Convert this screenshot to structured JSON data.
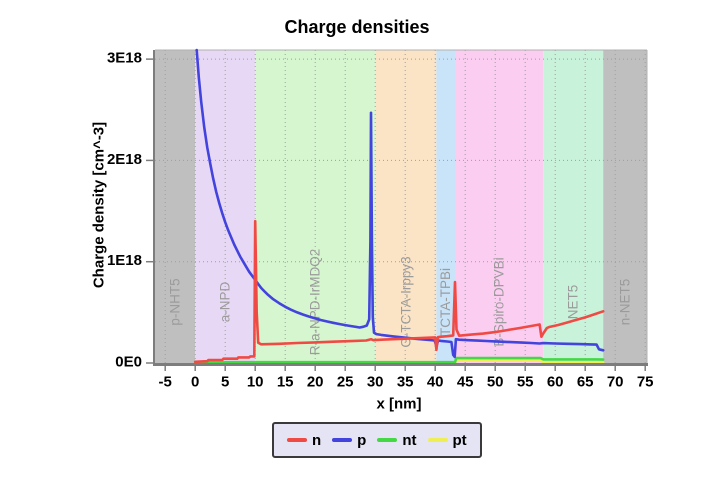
{
  "title": "Charge densities",
  "legend": {
    "items": [
      {
        "label": "n",
        "color": "#f04a45"
      },
      {
        "label": "p",
        "color": "#4343de"
      },
      {
        "label": "nt",
        "color": "#44d944"
      },
      {
        "label": "pt",
        "color": "#f0ee55"
      }
    ]
  },
  "chart_data": {
    "type": "line",
    "title": "Charge densities",
    "xlabel": "x [nm]",
    "ylabel": "Charge density [cm^-3]",
    "y_unit": "1e18 cm^-3",
    "xlim": [
      -6.7,
      75.3
    ],
    "ylim": [
      0,
      3.09
    ],
    "grid": true,
    "legend_position": "bottom",
    "x_ticks": [
      -5,
      0,
      5,
      10,
      15,
      20,
      25,
      30,
      35,
      40,
      45,
      50,
      55,
      60,
      65,
      70,
      75
    ],
    "y_ticks": [
      {
        "value": 0,
        "label": "0E0"
      },
      {
        "value": 1,
        "label": "1E18"
      },
      {
        "value": 2,
        "label": "2E18"
      },
      {
        "value": 3,
        "label": "3E18"
      }
    ],
    "regions": [
      {
        "x0": -6.7,
        "x1": 0,
        "color": "#bfbfbf",
        "label": "p-NHT5"
      },
      {
        "x0": 0,
        "x1": 10,
        "color": "#e7d9f5",
        "label": "a-NPD"
      },
      {
        "x0": 10,
        "x1": 30,
        "color": "#d5f6ce",
        "label": "R-a-NPD-IrMDQ2"
      },
      {
        "x0": 30,
        "x1": 40.2,
        "color": "#fbe4c6",
        "label": "G-TCTA-Irppy3"
      },
      {
        "x0": 40.2,
        "x1": 43.3,
        "color": "#c9e3f8",
        "label": "TCTA-TPBi"
      },
      {
        "x0": 43.3,
        "x1": 58,
        "color": "#fbcdf1",
        "label": "B-Spiro-DPVBi"
      },
      {
        "x0": 58,
        "x1": 68,
        "color": "#c9f2da",
        "label": "NET5"
      },
      {
        "x0": 68,
        "x1": 75.3,
        "color": "#bfbfbf",
        "label": "n-NET5"
      }
    ],
    "series": [
      {
        "name": "n",
        "color": "#f04a45",
        "points": [
          [
            0,
            0.012
          ],
          [
            2,
            0.018
          ],
          [
            2.2,
            0.03
          ],
          [
            4.5,
            0.03
          ],
          [
            4.7,
            0.042
          ],
          [
            7,
            0.042
          ],
          [
            7.2,
            0.055
          ],
          [
            9,
            0.055
          ],
          [
            9.2,
            0.065
          ],
          [
            9.85,
            0.065
          ],
          [
            10,
            1.4
          ],
          [
            10.25,
            0.5
          ],
          [
            10.5,
            0.2
          ],
          [
            11,
            0.185
          ],
          [
            14,
            0.19
          ],
          [
            17,
            0.197
          ],
          [
            20,
            0.203
          ],
          [
            23,
            0.21
          ],
          [
            26,
            0.216
          ],
          [
            28.5,
            0.222
          ],
          [
            29.3,
            0.235
          ],
          [
            29.7,
            0.225
          ],
          [
            30.2,
            0.228
          ],
          [
            32,
            0.233
          ],
          [
            34,
            0.238
          ],
          [
            36,
            0.243
          ],
          [
            38,
            0.248
          ],
          [
            40,
            0.253
          ],
          [
            40.2,
            0.13
          ],
          [
            40.45,
            0.255
          ],
          [
            41,
            0.26
          ],
          [
            42,
            0.265
          ],
          [
            43,
            0.272
          ],
          [
            43.3,
            0.8
          ],
          [
            43.55,
            0.33
          ],
          [
            44,
            0.27
          ],
          [
            46,
            0.28
          ],
          [
            48,
            0.29
          ],
          [
            50,
            0.305
          ],
          [
            52,
            0.325
          ],
          [
            54,
            0.345
          ],
          [
            56,
            0.365
          ],
          [
            57.4,
            0.38
          ],
          [
            57.7,
            0.26
          ],
          [
            58.1,
            0.3
          ],
          [
            58.6,
            0.345
          ],
          [
            59,
            0.355
          ],
          [
            60.5,
            0.375
          ],
          [
            62,
            0.4
          ],
          [
            63.5,
            0.425
          ],
          [
            65,
            0.45
          ],
          [
            66.5,
            0.48
          ],
          [
            68,
            0.51
          ]
        ]
      },
      {
        "name": "p",
        "color": "#4343de",
        "points": [
          [
            0.25,
            3.09
          ],
          [
            0.6,
            2.82
          ],
          [
            1,
            2.58
          ],
          [
            1.5,
            2.33
          ],
          [
            2,
            2.13
          ],
          [
            2.5,
            1.97
          ],
          [
            3,
            1.82
          ],
          [
            3.5,
            1.69
          ],
          [
            4,
            1.58
          ],
          [
            4.5,
            1.48
          ],
          [
            5,
            1.39
          ],
          [
            5.5,
            1.31
          ],
          [
            6,
            1.24
          ],
          [
            6.5,
            1.17
          ],
          [
            7,
            1.11
          ],
          [
            7.5,
            1.05
          ],
          [
            8,
            1.0
          ],
          [
            8.5,
            0.95
          ],
          [
            9,
            0.9
          ],
          [
            9.5,
            0.86
          ],
          [
            10,
            0.82
          ],
          [
            10.5,
            0.78
          ],
          [
            11,
            0.74
          ],
          [
            11.5,
            0.71
          ],
          [
            12,
            0.68
          ],
          [
            13,
            0.63
          ],
          [
            14,
            0.59
          ],
          [
            15,
            0.555
          ],
          [
            16,
            0.525
          ],
          [
            17,
            0.5
          ],
          [
            18,
            0.478
          ],
          [
            19,
            0.458
          ],
          [
            20,
            0.44
          ],
          [
            21,
            0.424
          ],
          [
            22,
            0.41
          ],
          [
            23,
            0.397
          ],
          [
            24,
            0.385
          ],
          [
            25,
            0.374
          ],
          [
            26,
            0.364
          ],
          [
            26.8,
            0.356
          ],
          [
            27.4,
            0.35
          ],
          [
            28,
            0.357
          ],
          [
            28.6,
            0.37
          ],
          [
            29,
            0.43
          ],
          [
            29.2,
            1.2
          ],
          [
            29.3,
            2.47
          ],
          [
            29.45,
            1.2
          ],
          [
            29.6,
            0.45
          ],
          [
            29.8,
            0.3
          ],
          [
            30.2,
            0.285
          ],
          [
            31,
            0.277
          ],
          [
            32,
            0.27
          ],
          [
            33,
            0.263
          ],
          [
            34,
            0.256
          ],
          [
            35,
            0.25
          ],
          [
            36,
            0.244
          ],
          [
            37,
            0.238
          ],
          [
            38,
            0.232
          ],
          [
            39,
            0.227
          ],
          [
            39.9,
            0.222
          ],
          [
            40.2,
            0.165
          ],
          [
            40.5,
            0.222
          ],
          [
            41,
            0.218
          ],
          [
            42,
            0.212
          ],
          [
            42.7,
            0.207
          ],
          [
            43,
            0.08
          ],
          [
            43.25,
            0.06
          ],
          [
            43.45,
            0.235
          ],
          [
            44,
            0.23
          ],
          [
            45.5,
            0.225
          ],
          [
            47,
            0.221
          ],
          [
            48.5,
            0.217
          ],
          [
            50,
            0.213
          ],
          [
            51.5,
            0.209
          ],
          [
            53,
            0.205
          ],
          [
            54.5,
            0.201
          ],
          [
            56,
            0.197
          ],
          [
            57.4,
            0.193
          ],
          [
            58,
            0.196
          ],
          [
            60,
            0.193
          ],
          [
            62,
            0.19
          ],
          [
            64,
            0.187
          ],
          [
            66,
            0.184
          ],
          [
            66.9,
            0.182
          ],
          [
            67.3,
            0.135
          ],
          [
            68,
            0.125
          ]
        ]
      },
      {
        "name": "nt",
        "color": "#44d944",
        "points": [
          [
            0,
            0.008
          ],
          [
            43.3,
            0.008
          ],
          [
            43.5,
            0.048
          ],
          [
            57.6,
            0.048
          ],
          [
            58,
            0.036
          ],
          [
            67,
            0.036
          ],
          [
            68,
            0.034
          ]
        ]
      },
      {
        "name": "pt",
        "color": "#f0ee55",
        "points": [
          [
            0,
            0.003
          ],
          [
            43.3,
            0.003
          ],
          [
            43.5,
            0.025
          ],
          [
            57.6,
            0.025
          ],
          [
            58,
            0.004
          ],
          [
            68,
            0.004
          ]
        ]
      }
    ]
  }
}
